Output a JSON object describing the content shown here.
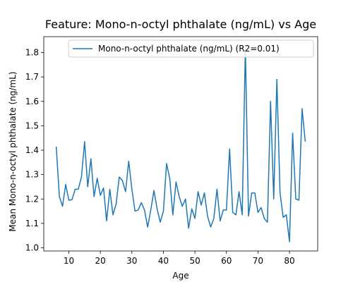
{
  "chart_data": {
    "type": "line",
    "title": "Feature: Mono-n-octyl phthalate (ng/mL) vs Age",
    "xlabel": "Age",
    "ylabel": "Mean Mono-n-octyl phthalate (ng/mL)",
    "xlim": [
      2.05,
      88.95
    ],
    "ylim": [
      0.987,
      1.865
    ],
    "xticks": [
      10,
      20,
      30,
      40,
      50,
      60,
      70,
      80
    ],
    "yticks": [
      1.0,
      1.1,
      1.2,
      1.3,
      1.4,
      1.5,
      1.6,
      1.7,
      1.8
    ],
    "ytick_labels": [
      "1.0",
      "1.1",
      "1.2",
      "1.3",
      "1.4",
      "1.5",
      "1.6",
      "1.7",
      "1.8"
    ],
    "grid": false,
    "legend_position": "top-right",
    "series": [
      {
        "name": "Mono-n-octyl phthalate (ng/mL) (R2=0.01)",
        "color": "#1f77b4",
        "x": [
          6,
          7,
          8,
          9,
          10,
          11,
          12,
          13,
          14,
          15,
          16,
          17,
          18,
          19,
          20,
          21,
          22,
          23,
          24,
          25,
          26,
          27,
          28,
          29,
          30,
          31,
          32,
          33,
          34,
          35,
          36,
          37,
          38,
          39,
          40,
          41,
          42,
          43,
          44,
          45,
          46,
          47,
          48,
          49,
          50,
          51,
          52,
          53,
          54,
          55,
          56,
          57,
          58,
          59,
          60,
          61,
          62,
          63,
          64,
          65,
          66,
          67,
          68,
          69,
          70,
          71,
          72,
          73,
          74,
          75,
          76,
          77,
          78,
          79,
          80,
          81,
          82,
          83,
          84,
          85
        ],
        "y": [
          1.415,
          1.21,
          1.17,
          1.26,
          1.195,
          1.197,
          1.24,
          1.24,
          1.29,
          1.435,
          1.25,
          1.365,
          1.21,
          1.285,
          1.215,
          1.245,
          1.11,
          1.24,
          1.135,
          1.18,
          1.29,
          1.275,
          1.23,
          1.355,
          1.24,
          1.15,
          1.155,
          1.185,
          1.155,
          1.085,
          1.155,
          1.235,
          1.16,
          1.105,
          1.15,
          1.345,
          1.285,
          1.135,
          1.27,
          1.21,
          1.17,
          1.2,
          1.08,
          1.16,
          1.12,
          1.23,
          1.175,
          1.225,
          1.13,
          1.085,
          1.12,
          1.24,
          1.11,
          1.155,
          1.155,
          1.405,
          1.145,
          1.135,
          1.23,
          1.135,
          1.82,
          1.13,
          1.225,
          1.225,
          1.145,
          1.165,
          1.12,
          1.105,
          1.6,
          1.2,
          1.69,
          1.225,
          1.125,
          1.135,
          1.025,
          1.47,
          1.2,
          1.195,
          1.57,
          1.435
        ]
      }
    ]
  }
}
